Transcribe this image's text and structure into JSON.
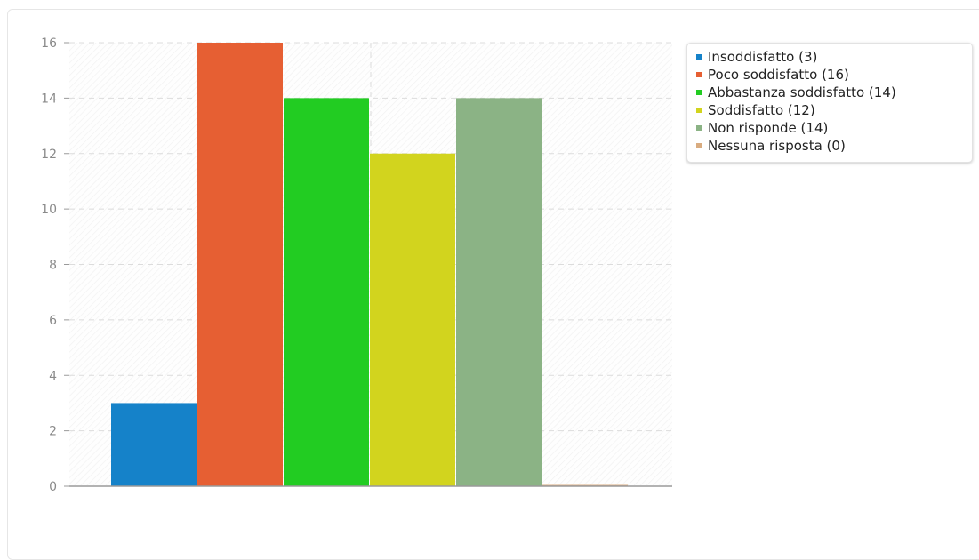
{
  "chart_data": {
    "type": "bar",
    "categories": [
      "Insoddisfatto",
      "Poco soddisfatto",
      "Abbastanza soddisfatto",
      "Soddisfatto",
      "Non risponde",
      "Nessuna risposta"
    ],
    "values": [
      3,
      16,
      14,
      12,
      14,
      0
    ],
    "colors": [
      "#1582c9",
      "#e65f33",
      "#22cc22",
      "#d2d41e",
      "#8bb385",
      "#d9ac80"
    ],
    "legend": [
      "Insoddisfatto (3)",
      "Poco soddisfatto (16)",
      "Abbastanza soddisfatto (14)",
      "Soddisfatto (12)",
      "Non risponde (14)",
      "Nessuna risposta (0)"
    ],
    "y_ticks": [
      "0",
      "2",
      "4",
      "6",
      "8",
      "10",
      "12",
      "14",
      "16"
    ],
    "ylim": [
      0,
      16
    ],
    "grid": true,
    "legend_position": "top-right",
    "title": "",
    "xlabel": "",
    "ylabel": ""
  }
}
